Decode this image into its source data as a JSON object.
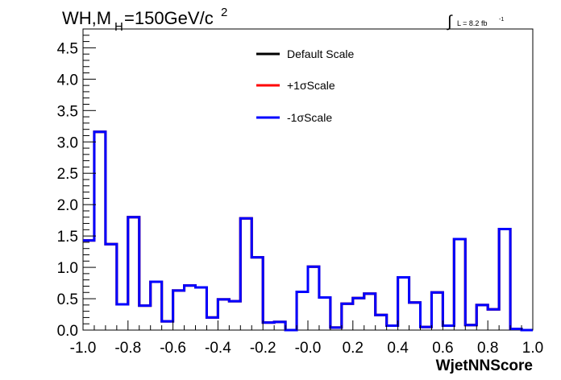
{
  "title_parts": {
    "base": "WH,M",
    "sub": "H",
    "rest": "=150GeV/c",
    "sup": "2"
  },
  "lumi_parts": {
    "integral": "∫",
    "text": "L = 8.2 fb",
    "sup": "-1"
  },
  "chart_data": {
    "type": "line",
    "style": "step-histogram",
    "xlabel": "WjetNNScore",
    "ylabel": "",
    "xlim": [
      -1.0,
      1.0
    ],
    "ylim": [
      0.0,
      4.8
    ],
    "grid": false,
    "legend_position": "top-center",
    "x_tick_labels": [
      "-1.0",
      "-0.8",
      "-0.6",
      "-0.4",
      "-0.2",
      "-0.0",
      "0.2",
      "0.4",
      "0.6",
      "0.8",
      "1.0"
    ],
    "x_tick_values": [
      -1.0,
      -0.8,
      -0.6,
      -0.4,
      -0.2,
      0.0,
      0.2,
      0.4,
      0.6,
      0.8,
      1.0
    ],
    "y_tick_labels": [
      "0.0",
      "0.5",
      "1.0",
      "1.5",
      "2.0",
      "2.5",
      "3.0",
      "3.5",
      "4.0",
      "4.5"
    ],
    "y_tick_values": [
      0.0,
      0.5,
      1.0,
      1.5,
      2.0,
      2.5,
      3.0,
      3.5,
      4.0,
      4.5
    ],
    "bin_edges": [
      -1.0,
      -0.95,
      -0.9,
      -0.85,
      -0.8,
      -0.75,
      -0.7,
      -0.65,
      -0.6,
      -0.55,
      -0.5,
      -0.45,
      -0.4,
      -0.35,
      -0.3,
      -0.25,
      -0.2,
      -0.15,
      -0.1,
      -0.05,
      0.0,
      0.05,
      0.1,
      0.15,
      0.2,
      0.25,
      0.3,
      0.35,
      0.4,
      0.45,
      0.5,
      0.55,
      0.6,
      0.65,
      0.7,
      0.75,
      0.8,
      0.85,
      0.9,
      0.95,
      1.0
    ],
    "series": [
      {
        "name": "Default Scale",
        "color": "#000000",
        "values": [
          1.43,
          3.16,
          1.37,
          0.41,
          1.8,
          0.39,
          0.77,
          0.14,
          0.63,
          0.71,
          0.68,
          0.2,
          0.49,
          0.46,
          1.78,
          1.16,
          0.12,
          0.13,
          0.0,
          0.61,
          1.01,
          0.52,
          0.04,
          0.42,
          0.51,
          0.58,
          0.24,
          0.07,
          0.84,
          0.44,
          0.05,
          0.6,
          0.07,
          1.45,
          0.08,
          0.4,
          0.33,
          1.61,
          0.02,
          0.0
        ]
      },
      {
        "name": "+1σScale",
        "color": "#ff0000",
        "values": [
          1.43,
          3.16,
          1.37,
          0.41,
          1.8,
          0.39,
          0.77,
          0.14,
          0.63,
          0.71,
          0.68,
          0.2,
          0.49,
          0.46,
          1.78,
          1.16,
          0.12,
          0.13,
          0.0,
          0.61,
          1.01,
          0.52,
          0.04,
          0.42,
          0.51,
          0.58,
          0.24,
          0.07,
          0.84,
          0.44,
          0.05,
          0.6,
          0.07,
          1.45,
          0.08,
          0.4,
          0.33,
          1.61,
          0.02,
          0.0
        ]
      },
      {
        "name": "-1σScale",
        "color": "#0000ff",
        "values": [
          1.43,
          3.16,
          1.37,
          0.41,
          1.8,
          0.39,
          0.77,
          0.14,
          0.63,
          0.71,
          0.68,
          0.2,
          0.49,
          0.46,
          1.78,
          1.16,
          0.12,
          0.13,
          0.0,
          0.61,
          1.01,
          0.52,
          0.04,
          0.42,
          0.51,
          0.58,
          0.24,
          0.07,
          0.84,
          0.44,
          0.05,
          0.6,
          0.07,
          1.45,
          0.08,
          0.4,
          0.33,
          1.61,
          0.02,
          0.0
        ]
      }
    ]
  }
}
